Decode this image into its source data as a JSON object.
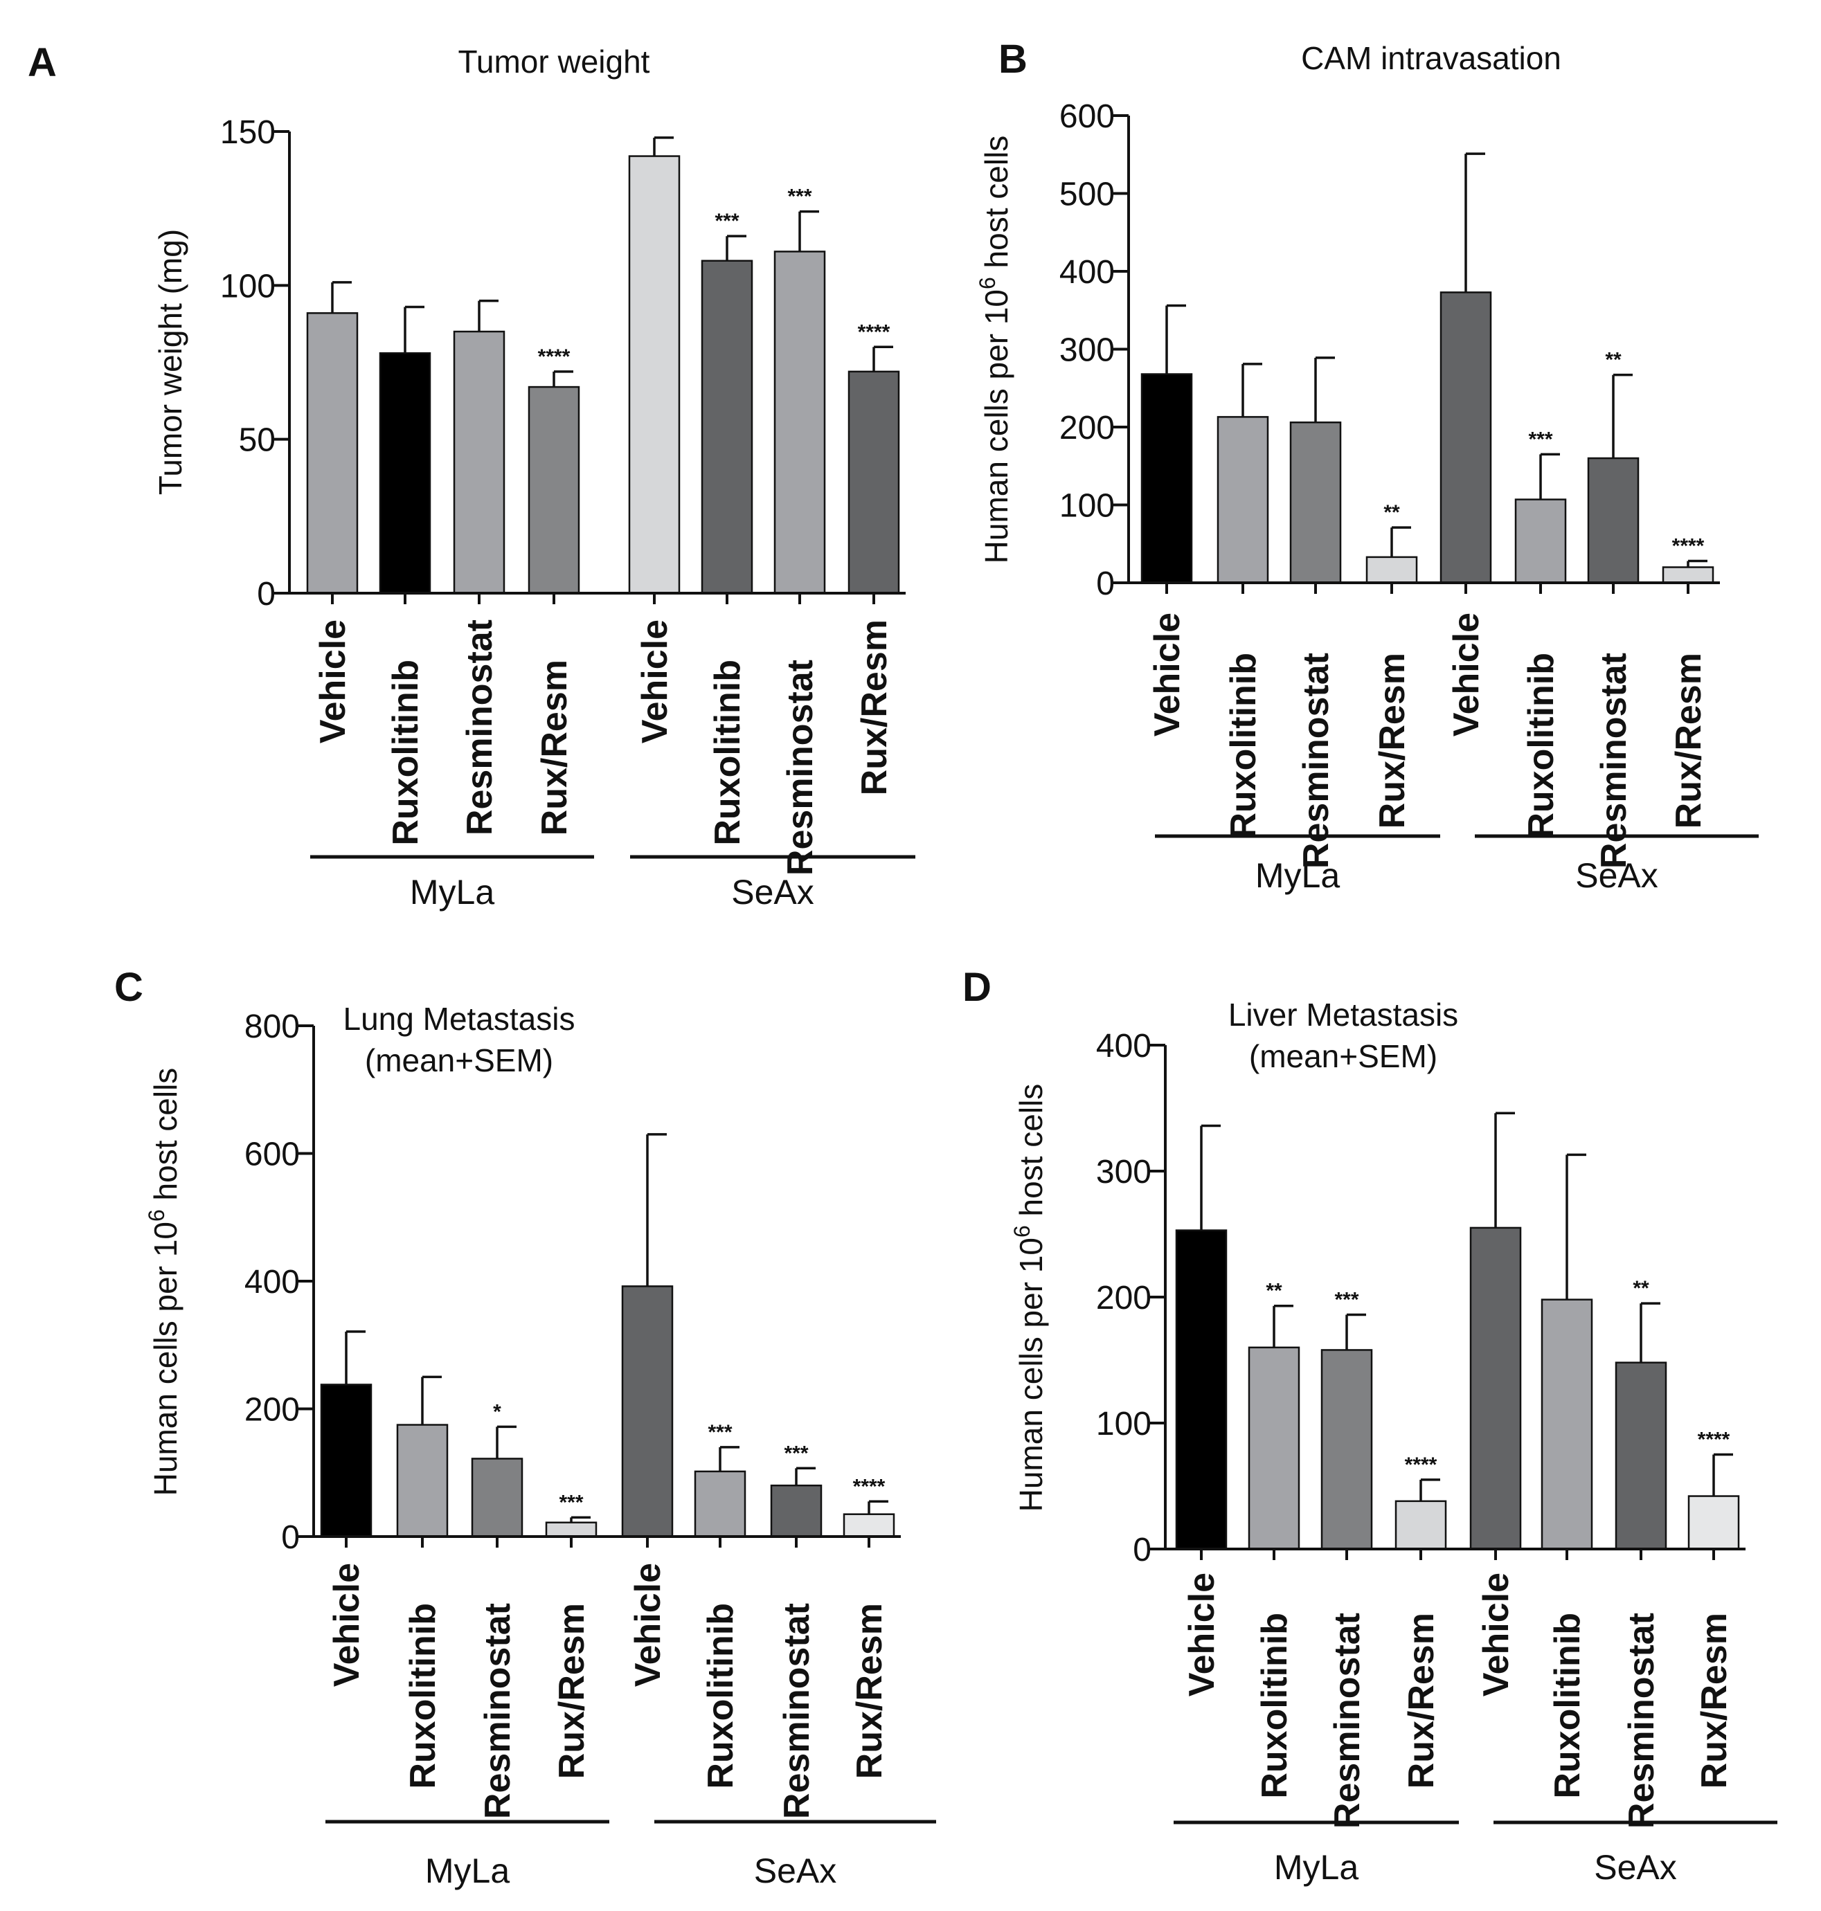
{
  "chart_data": [
    {
      "type": "bar",
      "panel": "A",
      "title": "Tumor weight",
      "subtitle": "",
      "ylabel": "Tumor weight (mg)",
      "ylim": [
        0,
        150
      ],
      "yticks": [
        0,
        50,
        100,
        150
      ],
      "categories": [
        "Vehicle",
        "Ruxolitinib",
        "Resminostat",
        "Rux/Resm",
        "Vehicle",
        "Ruxolitinib",
        "Resminostat",
        "Rux/Resm"
      ],
      "values": [
        91,
        78,
        85,
        67,
        142,
        108,
        111,
        72
      ],
      "errors": [
        10,
        15,
        10,
        5,
        6,
        8,
        13,
        8
      ],
      "significance": [
        "",
        "",
        "",
        "****",
        "",
        "***",
        "***",
        "****"
      ],
      "colors": [
        "#a3a4a8",
        "#000000",
        "#a3a4a8",
        "#858688",
        "#d6d7d9",
        "#636466",
        "#a3a4a8",
        "#636466"
      ],
      "groups": [
        {
          "label": "MyLa",
          "n": 4
        },
        {
          "label": "SeAx",
          "n": 4
        }
      ]
    },
    {
      "type": "bar",
      "panel": "B",
      "title": "CAM intravasation",
      "subtitle": "",
      "ylabel": "Human cells per 10",
      "ylabel_sup": "6",
      "ylabel_suffix": " host cells",
      "ylim": [
        0,
        600
      ],
      "yticks": [
        0,
        100,
        200,
        300,
        400,
        500,
        600
      ],
      "categories": [
        "Vehicle",
        "Ruxolitinib",
        "Resminostat",
        "Rux/Resm",
        "Vehicle",
        "Ruxolitinib",
        "Resminostat",
        "Rux/Resm"
      ],
      "values": [
        268,
        213,
        206,
        33,
        373,
        107,
        160,
        20
      ],
      "errors": [
        88,
        68,
        83,
        38,
        178,
        58,
        107,
        8
      ],
      "significance": [
        "",
        "",
        "",
        "**",
        "",
        "***",
        "**",
        "****"
      ],
      "colors": [
        "#000000",
        "#a3a4a8",
        "#808183",
        "#d6d7d9",
        "#636466",
        "#a3a4a8",
        "#636466",
        "#d6d7d9"
      ],
      "groups": [
        {
          "label": "MyLa",
          "n": 4
        },
        {
          "label": "SeAx",
          "n": 4
        }
      ]
    },
    {
      "type": "bar",
      "panel": "C",
      "title": "Lung Metastasis",
      "subtitle": "(mean+SEM)",
      "ylabel": "Human cells per 10",
      "ylabel_sup": "6",
      "ylabel_suffix": " host cells",
      "ylim": [
        0,
        800
      ],
      "yticks": [
        0,
        200,
        400,
        600,
        800
      ],
      "categories": [
        "Vehicle",
        "Ruxolitinib",
        "Resminostat",
        "Rux/Resm",
        "Vehicle",
        "Ruxolitinib",
        "Resminostat",
        "Rux/Resm"
      ],
      "values": [
        238,
        175,
        122,
        22,
        392,
        102,
        80,
        35
      ],
      "errors": [
        83,
        75,
        50,
        8,
        238,
        38,
        27,
        20
      ],
      "significance": [
        "",
        "",
        "*",
        "***",
        "",
        "***",
        "***",
        "****"
      ],
      "colors": [
        "#000000",
        "#a3a4a8",
        "#808183",
        "#d6d7d9",
        "#636466",
        "#a3a4a8",
        "#636466",
        "#e6e7e8"
      ],
      "groups": [
        {
          "label": "MyLa",
          "n": 4
        },
        {
          "label": "SeAx",
          "n": 4
        }
      ]
    },
    {
      "type": "bar",
      "panel": "D",
      "title": "Liver Metastasis",
      "subtitle": "(mean+SEM)",
      "ylabel": "Human cells per 10",
      "ylabel_sup": "6",
      "ylabel_suffix": " host cells",
      "ylim": [
        0,
        400
      ],
      "yticks": [
        0,
        100,
        200,
        300,
        400
      ],
      "categories": [
        "Vehicle",
        "Ruxolitinib",
        "Resminostat",
        "Rux/Resm",
        "Vehicle",
        "Ruxolitinib",
        "Resminostat",
        "Rux/Resm"
      ],
      "values": [
        253,
        160,
        158,
        38,
        255,
        198,
        148,
        42
      ],
      "errors": [
        83,
        33,
        28,
        17,
        91,
        115,
        47,
        33
      ],
      "significance": [
        "",
        "**",
        "***",
        "****",
        "",
        "",
        "**",
        "****"
      ],
      "colors": [
        "#000000",
        "#a3a4a8",
        "#808183",
        "#d6d7d9",
        "#636466",
        "#a3a4a8",
        "#636466",
        "#e6e7e8"
      ],
      "groups": [
        {
          "label": "MyLa",
          "n": 4
        },
        {
          "label": "SeAx",
          "n": 4
        }
      ]
    }
  ]
}
